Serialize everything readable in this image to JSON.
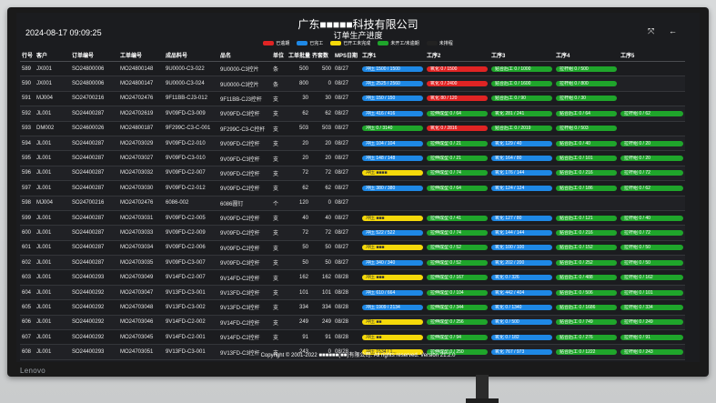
{
  "header": {
    "company": "广东■■■■■科技有限公司",
    "title": "订单生产进度",
    "datetime": "2024-08-17 09:09:25",
    "legend": [
      {
        "label": "已逾期",
        "color": "#e02424"
      },
      {
        "label": "已完工",
        "color": "#1e88e5"
      },
      {
        "label": "已开工未完成",
        "color": "#f5d90a"
      },
      {
        "label": "未开工/未逾期",
        "color": "#1fa52b"
      },
      {
        "label": "未排程",
        "color": "#222222"
      }
    ],
    "controls": {
      "fullscreen": "⤧",
      "back": "←"
    }
  },
  "columns": [
    "行号",
    "客户",
    "订单编号",
    "工单编号",
    "成品料号",
    "品名",
    "单位",
    "工单批量",
    "齐套数",
    "MPS日期",
    "工序1",
    "工序2",
    "工序3",
    "工序4",
    "工序5"
  ],
  "rows": [
    {
      "no": "589",
      "cust": "JX001",
      "order": "SO24800006",
      "wo": "MO24800148",
      "part": "9U0000-C3-022",
      "name": "9U0000-C3控片",
      "unit": "条",
      "qty": "500",
      "kit": "500",
      "mps": "08/27",
      "s": [
        {
          "c": "#1e88e5",
          "t": "冲压 1500 / 1500"
        },
        {
          "c": "#e02424",
          "t": "氧化 0 / 1500"
        },
        {
          "c": "#1fa52b",
          "t": "贴合后工 0 / 1000"
        },
        {
          "c": "#1fa52b",
          "t": "拉杆组 0 / 500"
        },
        {
          "c": "",
          "t": ""
        }
      ]
    },
    {
      "no": "590",
      "cust": "JX001",
      "order": "SO24800006",
      "wo": "MO24800147",
      "part": "9U0000-C3-024",
      "name": "9U0000-C3控片",
      "unit": "条",
      "qty": "800",
      "kit": "0",
      "mps": "08/27",
      "s": [
        {
          "c": "#1e88e5",
          "t": "冲压 2525 / 2560"
        },
        {
          "c": "#e02424",
          "t": "氧化 0 / 2400"
        },
        {
          "c": "#1fa52b",
          "t": "贴合后工 0 / 1600"
        },
        {
          "c": "#1fa52b",
          "t": "拉杆组 0 / 800"
        },
        {
          "c": "",
          "t": ""
        }
      ]
    },
    {
      "no": "591",
      "cust": "MJ004",
      "order": "SO24700216",
      "wo": "MO24702476",
      "part": "9F11BB-CJ3-012",
      "name": "9F11BB-CJ3控杆",
      "unit": "支",
      "qty": "30",
      "kit": "30",
      "mps": "08/27",
      "s": [
        {
          "c": "#1e88e5",
          "t": "冲压 150 / 150"
        },
        {
          "c": "#e02424",
          "t": "氧化 80 / 120"
        },
        {
          "c": "#1fa52b",
          "t": "贴合后工 0 / 90"
        },
        {
          "c": "#1fa52b",
          "t": "拉杆组 0 / 30"
        },
        {
          "c": "",
          "t": ""
        }
      ]
    },
    {
      "no": "592",
      "cust": "JL001",
      "order": "SO24400287",
      "wo": "MO24702619",
      "part": "9V09FD-C3-009",
      "name": "9V09FD-C3控杆",
      "unit": "支",
      "qty": "62",
      "kit": "62",
      "mps": "08/27",
      "s": [
        {
          "c": "#1e88e5",
          "t": "冲压 416 / 416"
        },
        {
          "c": "#1fa52b",
          "t": "拉伸成型 0 / 64"
        },
        {
          "c": "#1fa52b",
          "t": "氧化 281 / 241"
        },
        {
          "c": "#1fa52b",
          "t": "贴合后工 0 / 64"
        },
        {
          "c": "#1fa52b",
          "t": "拉杆组 0 / 62"
        }
      ]
    },
    {
      "no": "593",
      "cust": "DM002",
      "order": "SO24600026",
      "wo": "MO24800187",
      "part": "9F299C-C3-C-001",
      "name": "9F299C-C3-C控杆",
      "unit": "支",
      "qty": "503",
      "kit": "503",
      "mps": "08/27",
      "s": [
        {
          "c": "#1fa52b",
          "t": "冲压 0 / 3140"
        },
        {
          "c": "#e02424",
          "t": "氧化 0 / 2816"
        },
        {
          "c": "#1fa52b",
          "t": "贴合后工 0 / 2019"
        },
        {
          "c": "#1fa52b",
          "t": "拉杆组 0 / 503"
        },
        {
          "c": "",
          "t": ""
        }
      ]
    },
    {
      "no": "594",
      "cust": "JL001",
      "order": "SO24400287",
      "wo": "MO24703029",
      "part": "9V09FD-C2-010",
      "name": "9V09FD-C2控杆",
      "unit": "支",
      "qty": "20",
      "kit": "20",
      "mps": "08/27",
      "s": [
        {
          "c": "#1e88e5",
          "t": "冲压 104 / 104"
        },
        {
          "c": "#1fa52b",
          "t": "拉伸成型 0 / 21"
        },
        {
          "c": "#1e88e5",
          "t": "氧化 129 / 40"
        },
        {
          "c": "#1fa52b",
          "t": "贴合后工 0 / 40"
        },
        {
          "c": "#1fa52b",
          "t": "拉杆组 0 / 20"
        }
      ]
    },
    {
      "no": "595",
      "cust": "JL001",
      "order": "SO24400287",
      "wo": "MO24703027",
      "part": "9V09FD-C3-010",
      "name": "9V09FD-C3控杆",
      "unit": "支",
      "qty": "20",
      "kit": "20",
      "mps": "08/27",
      "s": [
        {
          "c": "#1e88e5",
          "t": "冲压 148 / 148"
        },
        {
          "c": "#1fa52b",
          "t": "拉伸成型 0 / 21"
        },
        {
          "c": "#1e88e5",
          "t": "氧化 164 / 80"
        },
        {
          "c": "#1fa52b",
          "t": "贴合后工 0 / 101"
        },
        {
          "c": "#1fa52b",
          "t": "拉杆组 0 / 20"
        }
      ]
    },
    {
      "no": "596",
      "cust": "JL001",
      "order": "SO24400287",
      "wo": "MO24703032",
      "part": "9V09FD-C2-007",
      "name": "9V09FD-C2控杆",
      "unit": "支",
      "qty": "72",
      "kit": "72",
      "mps": "08/27",
      "s": [
        {
          "c": "#f5d90a",
          "t": "冲压 ■■■■"
        },
        {
          "c": "#1fa52b",
          "t": "拉伸成型 0 / 74"
        },
        {
          "c": "#1e88e5",
          "t": "氧化 176 / 144"
        },
        {
          "c": "#1fa52b",
          "t": "贴合后工 0 / 216"
        },
        {
          "c": "#1fa52b",
          "t": "拉杆组 0 / 72"
        }
      ]
    },
    {
      "no": "597",
      "cust": "JL001",
      "order": "SO24400287",
      "wo": "MO24703030",
      "part": "9V09FD-C2-012",
      "name": "9V09FD-C2控杆",
      "unit": "支",
      "qty": "62",
      "kit": "62",
      "mps": "08/27",
      "s": [
        {
          "c": "#1e88e5",
          "t": "冲压 380 / 380"
        },
        {
          "c": "#1fa52b",
          "t": "拉伸成型 0 / 64"
        },
        {
          "c": "#1e88e5",
          "t": "氧化 124 / 124"
        },
        {
          "c": "#1fa52b",
          "t": "贴合后工 0 / 186"
        },
        {
          "c": "#1fa52b",
          "t": "拉杆组 0 / 62"
        }
      ]
    },
    {
      "no": "598",
      "cust": "MJ004",
      "order": "SO24700216",
      "wo": "MO24702476",
      "part": "6086-002",
      "name": "6086圆钉",
      "unit": "个",
      "qty": "120",
      "kit": "0",
      "mps": "08/27",
      "s": [
        {
          "c": "",
          "t": ""
        },
        {
          "c": "",
          "t": ""
        },
        {
          "c": "",
          "t": ""
        },
        {
          "c": "",
          "t": ""
        },
        {
          "c": "",
          "t": ""
        }
      ]
    },
    {
      "no": "599",
      "cust": "JL001",
      "order": "SO24400287",
      "wo": "MO24703031",
      "part": "9V09FD-C2-005",
      "name": "9V09FD-C2控杆",
      "unit": "支",
      "qty": "40",
      "kit": "40",
      "mps": "08/27",
      "s": [
        {
          "c": "#f5d90a",
          "t": "冲压 ■■■"
        },
        {
          "c": "#1fa52b",
          "t": "拉伸成型 0 / 41"
        },
        {
          "c": "#1e88e5",
          "t": "氧化 127 / 80"
        },
        {
          "c": "#1fa52b",
          "t": "贴合后工 0 / 121"
        },
        {
          "c": "#1fa52b",
          "t": "拉杆组 0 / 40"
        }
      ]
    },
    {
      "no": "600",
      "cust": "JL001",
      "order": "SO24400287",
      "wo": "MO24703033",
      "part": "9V09FD-C2-009",
      "name": "9V09FD-C2控杆",
      "unit": "支",
      "qty": "72",
      "kit": "72",
      "mps": "08/27",
      "s": [
        {
          "c": "#1e88e5",
          "t": "冲压 522 / 522"
        },
        {
          "c": "#1fa52b",
          "t": "拉伸成型 0 / 74"
        },
        {
          "c": "#1e88e5",
          "t": "氧化 144 / 144"
        },
        {
          "c": "#1fa52b",
          "t": "贴合后工 0 / 216"
        },
        {
          "c": "#1fa52b",
          "t": "拉杆组 0 / 72"
        }
      ]
    },
    {
      "no": "601",
      "cust": "JL001",
      "order": "SO24400287",
      "wo": "MO24703034",
      "part": "9V09FD-C2-006",
      "name": "9V09FD-C2控杆",
      "unit": "支",
      "qty": "50",
      "kit": "50",
      "mps": "08/27",
      "s": [
        {
          "c": "#f5d90a",
          "t": "冲压 ■■■"
        },
        {
          "c": "#1fa52b",
          "t": "拉伸成型 0 / 52"
        },
        {
          "c": "#1e88e5",
          "t": "氧化 100 / 100"
        },
        {
          "c": "#1fa52b",
          "t": "贴合后工 0 / 152"
        },
        {
          "c": "#1fa52b",
          "t": "拉杆组 0 / 50"
        }
      ]
    },
    {
      "no": "602",
      "cust": "JL001",
      "order": "SO24400287",
      "wo": "MO24703035",
      "part": "9V09FD-C3-007",
      "name": "9V09FD-C3控杆",
      "unit": "支",
      "qty": "50",
      "kit": "50",
      "mps": "08/27",
      "s": [
        {
          "c": "#1e88e5",
          "t": "冲压 340 / 340"
        },
        {
          "c": "#1fa52b",
          "t": "拉伸成型 0 / 52"
        },
        {
          "c": "#1e88e5",
          "t": "氧化 202 / 200"
        },
        {
          "c": "#1fa52b",
          "t": "贴合后工 0 / 252"
        },
        {
          "c": "#1fa52b",
          "t": "拉杆组 0 / 50"
        }
      ]
    },
    {
      "no": "603",
      "cust": "JL001",
      "order": "SO24400293",
      "wo": "MO24703049",
      "part": "9V14FD-C2-007",
      "name": "9V14FD-C2控杆",
      "unit": "支",
      "qty": "162",
      "kit": "162",
      "mps": "08/28",
      "s": [
        {
          "c": "#f5d90a",
          "t": "冲压 ■■■"
        },
        {
          "c": "#1fa52b",
          "t": "拉伸成型 0 / 167"
        },
        {
          "c": "#1e88e5",
          "t": "氧化 0 / 326"
        },
        {
          "c": "#1fa52b",
          "t": "贴合后工 0 / 488"
        },
        {
          "c": "#1fa52b",
          "t": "拉杆组 0 / 162"
        }
      ]
    },
    {
      "no": "604",
      "cust": "JL001",
      "order": "SO24400292",
      "wo": "MO24703047",
      "part": "9V13FD-C3-001",
      "name": "9V13FD-C3控杆",
      "unit": "支",
      "qty": "101",
      "kit": "101",
      "mps": "08/28",
      "s": [
        {
          "c": "#1e88e5",
          "t": "冲压 610 / 664"
        },
        {
          "c": "#1fa52b",
          "t": "拉伸成型 0 / 104"
        },
        {
          "c": "#1e88e5",
          "t": "氧化 442 / 404"
        },
        {
          "c": "#1fa52b",
          "t": "贴合后工 0 / 506"
        },
        {
          "c": "#1fa52b",
          "t": "拉杆组 0 / 101"
        }
      ]
    },
    {
      "no": "605",
      "cust": "JL001",
      "order": "SO24400292",
      "wo": "MO24703048",
      "part": "9V13FD-C3-002",
      "name": "9V13FD-C3控杆",
      "unit": "支",
      "qty": "334",
      "kit": "334",
      "mps": "08/28",
      "s": [
        {
          "c": "#1e88e5",
          "t": "冲压 1909 / 2134"
        },
        {
          "c": "#1fa52b",
          "t": "拉伸成型 0 / 344"
        },
        {
          "c": "#1e88e5",
          "t": "氧化 0 / 1340"
        },
        {
          "c": "#1fa52b",
          "t": "贴合后工 0 / 1686"
        },
        {
          "c": "#1fa52b",
          "t": "拉杆组 0 / 334"
        }
      ]
    },
    {
      "no": "606",
      "cust": "JL001",
      "order": "SO24400292",
      "wo": "MO24703046",
      "part": "9V14FD-C2-002",
      "name": "9V14FD-C2控杆",
      "unit": "支",
      "qty": "249",
      "kit": "249",
      "mps": "08/28",
      "s": [
        {
          "c": "#f5d90a",
          "t": "冲压 ■■"
        },
        {
          "c": "#1fa52b",
          "t": "拉伸成型 0 / 256"
        },
        {
          "c": "#1e88e5",
          "t": "氧化 0 / 500"
        },
        {
          "c": "#1fa52b",
          "t": "贴合后工 0 / 749"
        },
        {
          "c": "#1fa52b",
          "t": "拉杆组 0 / 249"
        }
      ]
    },
    {
      "no": "607",
      "cust": "JL001",
      "order": "SO24400292",
      "wo": "MO24703045",
      "part": "9V14FD-C2-001",
      "name": "9V14FD-C2控杆",
      "unit": "支",
      "qty": "91",
      "kit": "91",
      "mps": "08/28",
      "s": [
        {
          "c": "#f5d90a",
          "t": "冲压 ■■"
        },
        {
          "c": "#1fa52b",
          "t": "拉伸成型 0 / 94"
        },
        {
          "c": "#1e88e5",
          "t": "氧化 0 / 182"
        },
        {
          "c": "#1fa52b",
          "t": "贴合后工 0 / 276"
        },
        {
          "c": "#1fa52b",
          "t": "拉杆组 0 / 91"
        }
      ]
    },
    {
      "no": "608",
      "cust": "JL001",
      "order": "SO24400293",
      "wo": "MO24703051",
      "part": "9V13FD-C3-001",
      "name": "9V13FD-C3控杆",
      "unit": "支",
      "qty": "243",
      "kit": "0",
      "mps": "08/28",
      "s": [
        {
          "c": "#f5d90a",
          "t": "冲压 1534 / 1..."
        },
        {
          "c": "#1fa52b",
          "t": "拉伸成型 0 / 250"
        },
        {
          "c": "#1e88e5",
          "t": "氧化 767 / 973"
        },
        {
          "c": "#1fa52b",
          "t": "贴合后工 0 / 1222"
        },
        {
          "c": "#1fa52b",
          "t": "拉杆组 0 / 243"
        }
      ]
    },
    {
      "no": "609",
      "cust": "DM001",
      "order": "SO24700257",
      "wo": "MO24702736",
      "part": "9G01AA-C2-X-045",
      "name": "9G01AA-C2-X控杆",
      "unit": "支",
      "qty": "203",
      "kit": "203",
      "mps": "08/28",
      "s": [
        {
          "c": "#1e88e5",
          "t": "冲压 939 / 603"
        },
        {
          "c": "#1e88e5",
          "t": "冷弯 639 / 639"
        },
        {
          "c": "#1fa52b",
          "t": "氧化 0 / 614"
        },
        {
          "c": "#1fa52b",
          "t": "贴合后工 0 / 609"
        },
        {
          "c": "#1fa52b",
          "t": "拉杆组 0 / 203"
        }
      ]
    }
  ],
  "footer": {
    "text": "Copyright © 2001-2022 ■■■■■■(■■)有限公司. All rights reserved. Version 21.2.0"
  },
  "monitor": {
    "brand": "Lenovo"
  }
}
